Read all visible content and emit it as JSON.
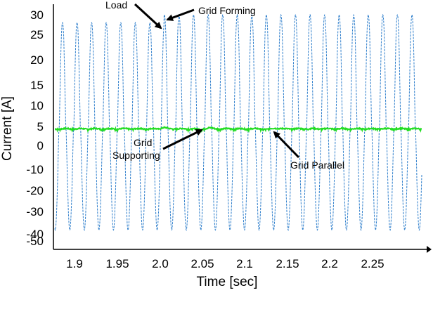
{
  "chart_data": {
    "type": "line",
    "title": "",
    "xlabel": "Time [sec]",
    "ylabel": "Current [A]",
    "xlim": [
      1.875,
      2.295
    ],
    "ylim": [
      -52,
      32
    ],
    "x_ticks": [
      "1.9",
      "1.95",
      "2.0",
      "2.05",
      "2.1",
      "2.15",
      "2.2",
      "2.25"
    ],
    "x_tick_values": [
      1.9,
      1.95,
      2.0,
      2.05,
      2.1,
      2.15,
      2.2,
      2.25
    ],
    "y_ticks": [
      "30",
      "25",
      "20",
      "15",
      "10",
      "5",
      "0",
      "-10",
      "-20",
      "-30",
      "-40",
      "-50"
    ],
    "y_tick_values": [
      30,
      25,
      20,
      15,
      10,
      5,
      0,
      -10,
      -20,
      -30,
      -40,
      -50
    ],
    "grid": false,
    "legend": "none",
    "series": [
      {
        "frequency_hz": 60,
        "peak_max_before": 28,
        "peak_max_after": 30,
        "peak_min": -48,
        "color": "#2f7fcc"
      },
      {
        "baseline": 0.8,
        "ripple": 1.2,
        "color": "#22dd22"
      }
    ],
    "annotations": [
      {
        "text": "Load",
        "x": 2.0,
        "y": 29
      },
      {
        "text": "Grid Forming",
        "x": 2.005,
        "y": 28
      },
      {
        "text": "Grid Supporting",
        "x": 2.05,
        "y": 0
      },
      {
        "text": "Grid Parallel",
        "x": 2.13,
        "y": 1
      }
    ]
  }
}
